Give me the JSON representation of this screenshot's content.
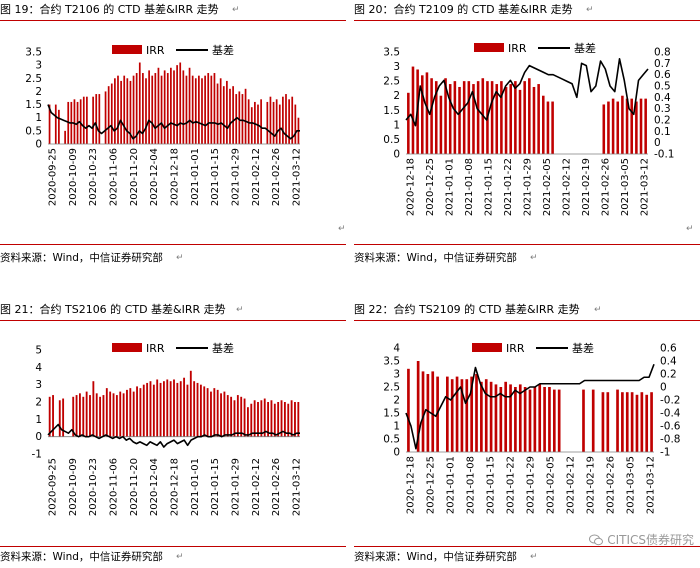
{
  "panels": [
    {
      "title": "图 19：合约 T2106 的 CTD 基差&IRR 走势",
      "source": "资料来源：Wind，中信证券研究部",
      "chart_data": {
        "type": "bar",
        "series": [
          {
            "name": "IRR",
            "type": "bar",
            "axis": "left"
          },
          {
            "name": "基差",
            "type": "line",
            "axis": "left"
          }
        ],
        "left_ticks": [
          "3.5",
          "3",
          "2.5",
          "2",
          "1.5",
          "1",
          "0.5",
          "0"
        ],
        "ylim_left": [
          0,
          3.5
        ],
        "categories": [
          "2020-09-25",
          "2020-10-09",
          "2020-10-23",
          "2020-11-06",
          "2020-11-20",
          "2020-12-04",
          "2020-12-18",
          "2021-01-01",
          "2021-01-15",
          "2021-01-29",
          "2021-02-12",
          "2021-02-26",
          "2021-03-12"
        ],
        "irr": [
          1.5,
          0.0,
          1.5,
          1.3,
          0.0,
          0.5,
          1.6,
          1.6,
          1.7,
          1.6,
          1.7,
          1.8,
          1.8,
          0.0,
          1.8,
          1.9,
          1.9,
          0.0,
          2.0,
          2.2,
          2.3,
          2.5,
          2.6,
          2.4,
          2.6,
          2.5,
          2.4,
          2.6,
          2.7,
          3.1,
          2.7,
          2.5,
          2.8,
          2.6,
          2.7,
          2.9,
          2.6,
          2.8,
          2.7,
          2.9,
          2.8,
          3.0,
          3.1,
          2.8,
          2.6,
          2.9,
          2.6,
          2.5,
          2.6,
          2.5,
          2.6,
          2.7,
          2.6,
          2.7,
          2.3,
          2.5,
          2.2,
          2.4,
          2.1,
          2.2,
          1.9,
          2.0,
          1.9,
          2.1,
          1.7,
          1.4,
          1.6,
          1.5,
          1.7,
          0.0,
          1.6,
          1.8,
          1.6,
          1.7,
          1.5,
          1.8,
          1.9,
          1.7,
          1.8,
          1.5,
          1.0
        ],
        "basis": [
          1.5,
          1.2,
          1.1,
          1.0,
          0.95,
          0.9,
          0.85,
          0.8,
          0.8,
          0.75,
          0.85,
          0.7,
          0.6,
          0.7,
          0.6,
          0.8,
          0.5,
          0.4,
          0.5,
          0.6,
          0.7,
          0.5,
          0.6,
          0.9,
          0.7,
          0.5,
          0.4,
          0.2,
          0.3,
          0.5,
          0.4,
          0.6,
          0.9,
          0.8,
          0.6,
          0.7,
          0.8,
          0.6,
          0.7,
          0.8,
          0.75,
          0.7,
          0.8,
          0.75,
          0.8,
          0.9,
          0.8,
          0.85,
          0.8,
          0.75,
          0.7,
          0.8,
          0.8,
          0.8,
          0.75,
          0.8,
          0.7,
          0.6,
          0.8,
          0.9,
          1.0,
          0.9,
          0.9,
          0.85,
          0.8,
          0.8,
          0.75,
          0.7,
          0.6,
          0.6,
          0.5,
          0.4,
          0.3,
          0.5,
          0.6,
          0.4,
          0.3,
          0.2,
          0.3,
          0.5,
          0.5
        ]
      }
    },
    {
      "title": "图 20：合约 T2109 的 CTD 基差&IRR 走势",
      "source": "资料来源：Wind，中信证券研究部",
      "chart_data": {
        "type": "bar",
        "series": [
          {
            "name": "IRR",
            "type": "bar",
            "axis": "left"
          },
          {
            "name": "基差",
            "type": "line",
            "axis": "right"
          }
        ],
        "left_ticks": [
          "3.5",
          "3",
          "2.5",
          "2",
          "1.5",
          "1",
          "0.5",
          "0"
        ],
        "right_ticks": [
          "0.8",
          "0.7",
          "0.6",
          "0.5",
          "0.4",
          "0.3",
          "0.2",
          "0.1",
          "0",
          "-0.1"
        ],
        "ylim_left": [
          0,
          3.5
        ],
        "ylim_right": [
          -0.1,
          0.8
        ],
        "categories": [
          "2020-12-18",
          "2020-12-25",
          "2021-01-01",
          "2021-01-08",
          "2021-01-15",
          "2021-01-22",
          "2021-01-29",
          "2021-02-05",
          "2021-02-12",
          "2021-02-19",
          "2021-02-26",
          "2021-03-05",
          "2021-03-12"
        ],
        "irr": [
          2.1,
          3.0,
          2.9,
          2.7,
          2.8,
          2.6,
          2.5,
          2.0,
          2.6,
          2.4,
          2.5,
          2.3,
          2.5,
          2.5,
          2.4,
          2.5,
          2.6,
          2.5,
          2.5,
          2.4,
          2.5,
          2.3,
          2.4,
          2.5,
          2.2,
          2.5,
          2.6,
          2.3,
          2.4,
          2.0,
          1.8,
          1.8,
          0.0,
          0.0,
          0.0,
          0.0,
          0.0,
          0.0,
          0.0,
          0.0,
          0.0,
          0.0,
          1.7,
          1.8,
          1.9,
          1.8,
          2.0,
          1.9,
          1.9,
          1.8,
          1.9,
          1.9
        ],
        "basis": [
          0.2,
          0.25,
          0.15,
          0.5,
          0.35,
          0.25,
          0.4,
          0.5,
          0.55,
          0.4,
          0.3,
          0.25,
          0.3,
          0.35,
          0.45,
          0.3,
          0.25,
          0.2,
          0.35,
          0.45,
          0.4,
          0.5,
          0.55,
          0.48,
          0.52,
          0.62,
          0.68,
          0.66,
          0.64,
          0.62,
          0.6,
          0.6,
          0.58,
          0.56,
          0.54,
          0.52,
          0.4,
          0.7,
          0.68,
          0.45,
          0.5,
          0.72,
          0.65,
          0.5,
          0.45,
          0.74,
          0.55,
          0.3,
          0.25,
          0.55,
          0.6,
          0.65
        ]
      }
    },
    {
      "title": "图 21：合约 TS2106 的 CTD 基差&IRR 走势",
      "source": "资料来源：Wind，中信证券研究部",
      "chart_data": {
        "type": "bar",
        "series": [
          {
            "name": "IRR",
            "type": "bar",
            "axis": "left"
          },
          {
            "name": "基差",
            "type": "line",
            "axis": "left"
          }
        ],
        "left_ticks": [
          "5",
          "4",
          "3",
          "2",
          "1",
          "0",
          "-1"
        ],
        "ylim_left": [
          -1,
          5
        ],
        "categories": [
          "2020-09-25",
          "2020-10-09",
          "2020-10-23",
          "2020-11-06",
          "2020-11-20",
          "2020-12-04",
          "2020-12-18",
          "2021-01-01",
          "2021-01-15",
          "2021-01-29",
          "2021-02-12",
          "2021-02-26",
          "2021-03-12"
        ],
        "irr": [
          2.3,
          2.4,
          0.0,
          2.1,
          2.2,
          0.0,
          0.0,
          2.3,
          2.4,
          2.5,
          2.3,
          2.6,
          2.4,
          3.2,
          2.5,
          2.3,
          2.4,
          2.8,
          2.6,
          2.5,
          2.4,
          2.6,
          2.5,
          2.7,
          2.8,
          2.6,
          2.9,
          2.8,
          3.0,
          3.1,
          3.2,
          3.0,
          3.3,
          3.1,
          3.2,
          3.3,
          3.2,
          3.3,
          3.1,
          3.2,
          3.4,
          3.0,
          3.8,
          3.2,
          3.1,
          3.0,
          2.9,
          2.8,
          2.6,
          2.8,
          2.7,
          2.5,
          2.6,
          2.4,
          2.3,
          2.1,
          2.4,
          2.3,
          2.2,
          1.7,
          1.9,
          2.1,
          2.0,
          2.1,
          2.2,
          2.0,
          2.1,
          1.9,
          2.0,
          2.1,
          2.0,
          1.9,
          2.1,
          2.0,
          2.0
        ],
        "basis": [
          0.1,
          0.3,
          0.5,
          0.7,
          0.4,
          0.3,
          0.2,
          0.4,
          0.1,
          0.0,
          0.1,
          0.0,
          0.0,
          0.1,
          0.0,
          -0.1,
          0.0,
          0.1,
          0.0,
          -0.1,
          0.0,
          -0.1,
          0.0,
          -0.2,
          -0.1,
          -0.3,
          -0.4,
          -0.3,
          -0.4,
          -0.5,
          -0.3,
          -0.4,
          -0.5,
          -0.3,
          -0.6,
          -0.4,
          -0.3,
          -0.2,
          -0.4,
          -0.3,
          -0.2,
          -0.5,
          -0.2,
          -0.1,
          0.0,
          0.0,
          0.1,
          0.0,
          0.0,
          0.1,
          0.1,
          0.0,
          0.1,
          0.1,
          0.1,
          0.2,
          0.2,
          0.2,
          0.1,
          0.1,
          0.2,
          0.2,
          0.2,
          0.2,
          0.3,
          0.2,
          0.2,
          0.1,
          0.2,
          0.3,
          0.2,
          0.2,
          0.1,
          0.2,
          0.2
        ]
      }
    },
    {
      "title": "图 22：合约 TS2109 的 CTD 基差&IRR 走势",
      "source": "资料来源：Wind，中信证券研究部",
      "watermark": "CITICS债券研究",
      "chart_data": {
        "type": "bar",
        "series": [
          {
            "name": "IRR",
            "type": "bar",
            "axis": "left"
          },
          {
            "name": "基差",
            "type": "line",
            "axis": "right"
          }
        ],
        "left_ticks": [
          "4",
          "3.5",
          "3",
          "2.5",
          "2",
          "1.5",
          "1",
          "0.5",
          "0"
        ],
        "right_ticks": [
          "0.6",
          "0.4",
          "0.2",
          "0",
          "-0.2",
          "-0.4",
          "-0.6",
          "-0.8",
          "-1"
        ],
        "ylim_left": [
          0,
          4
        ],
        "ylim_right": [
          -1,
          0.6
        ],
        "categories": [
          "2020-12-18",
          "2020-12-25",
          "2021-01-01",
          "2021-01-08",
          "2021-01-15",
          "2021-01-22",
          "2021-01-29",
          "2021-02-05",
          "2021-02-12",
          "2021-02-19",
          "2021-02-26",
          "2021-03-05",
          "2021-03-12"
        ],
        "irr": [
          3.2,
          0.0,
          3.5,
          3.1,
          3.0,
          3.1,
          2.9,
          0.0,
          2.9,
          2.8,
          2.9,
          2.8,
          2.8,
          2.9,
          3.0,
          2.7,
          2.8,
          2.7,
          2.6,
          2.5,
          2.7,
          2.6,
          2.5,
          2.6,
          2.5,
          2.4,
          2.5,
          2.6,
          2.5,
          2.5,
          2.4,
          2.4,
          0.0,
          0.0,
          0.0,
          0.0,
          2.4,
          0.0,
          2.4,
          0.0,
          2.3,
          2.3,
          0.0,
          2.4,
          2.3,
          2.3,
          2.3,
          2.2,
          2.3,
          2.2,
          2.3
        ],
        "basis": [
          -0.4,
          -0.6,
          -0.95,
          -0.55,
          -0.35,
          -0.4,
          -0.45,
          -0.3,
          -0.15,
          -0.2,
          -0.1,
          0.0,
          -0.25,
          -0.1,
          0.3,
          0.05,
          -0.1,
          -0.15,
          -0.15,
          -0.1,
          -0.15,
          -0.15,
          -0.05,
          -0.1,
          -0.05,
          0.0,
          0.0,
          0.05,
          0.05,
          0.05,
          0.05,
          0.05,
          0.05,
          0.05,
          0.05,
          0.05,
          0.1,
          0.1,
          0.1,
          0.1,
          0.1,
          0.1,
          0.1,
          0.1,
          0.1,
          0.1,
          0.1,
          0.1,
          0.15,
          0.15,
          0.35
        ]
      }
    }
  ]
}
